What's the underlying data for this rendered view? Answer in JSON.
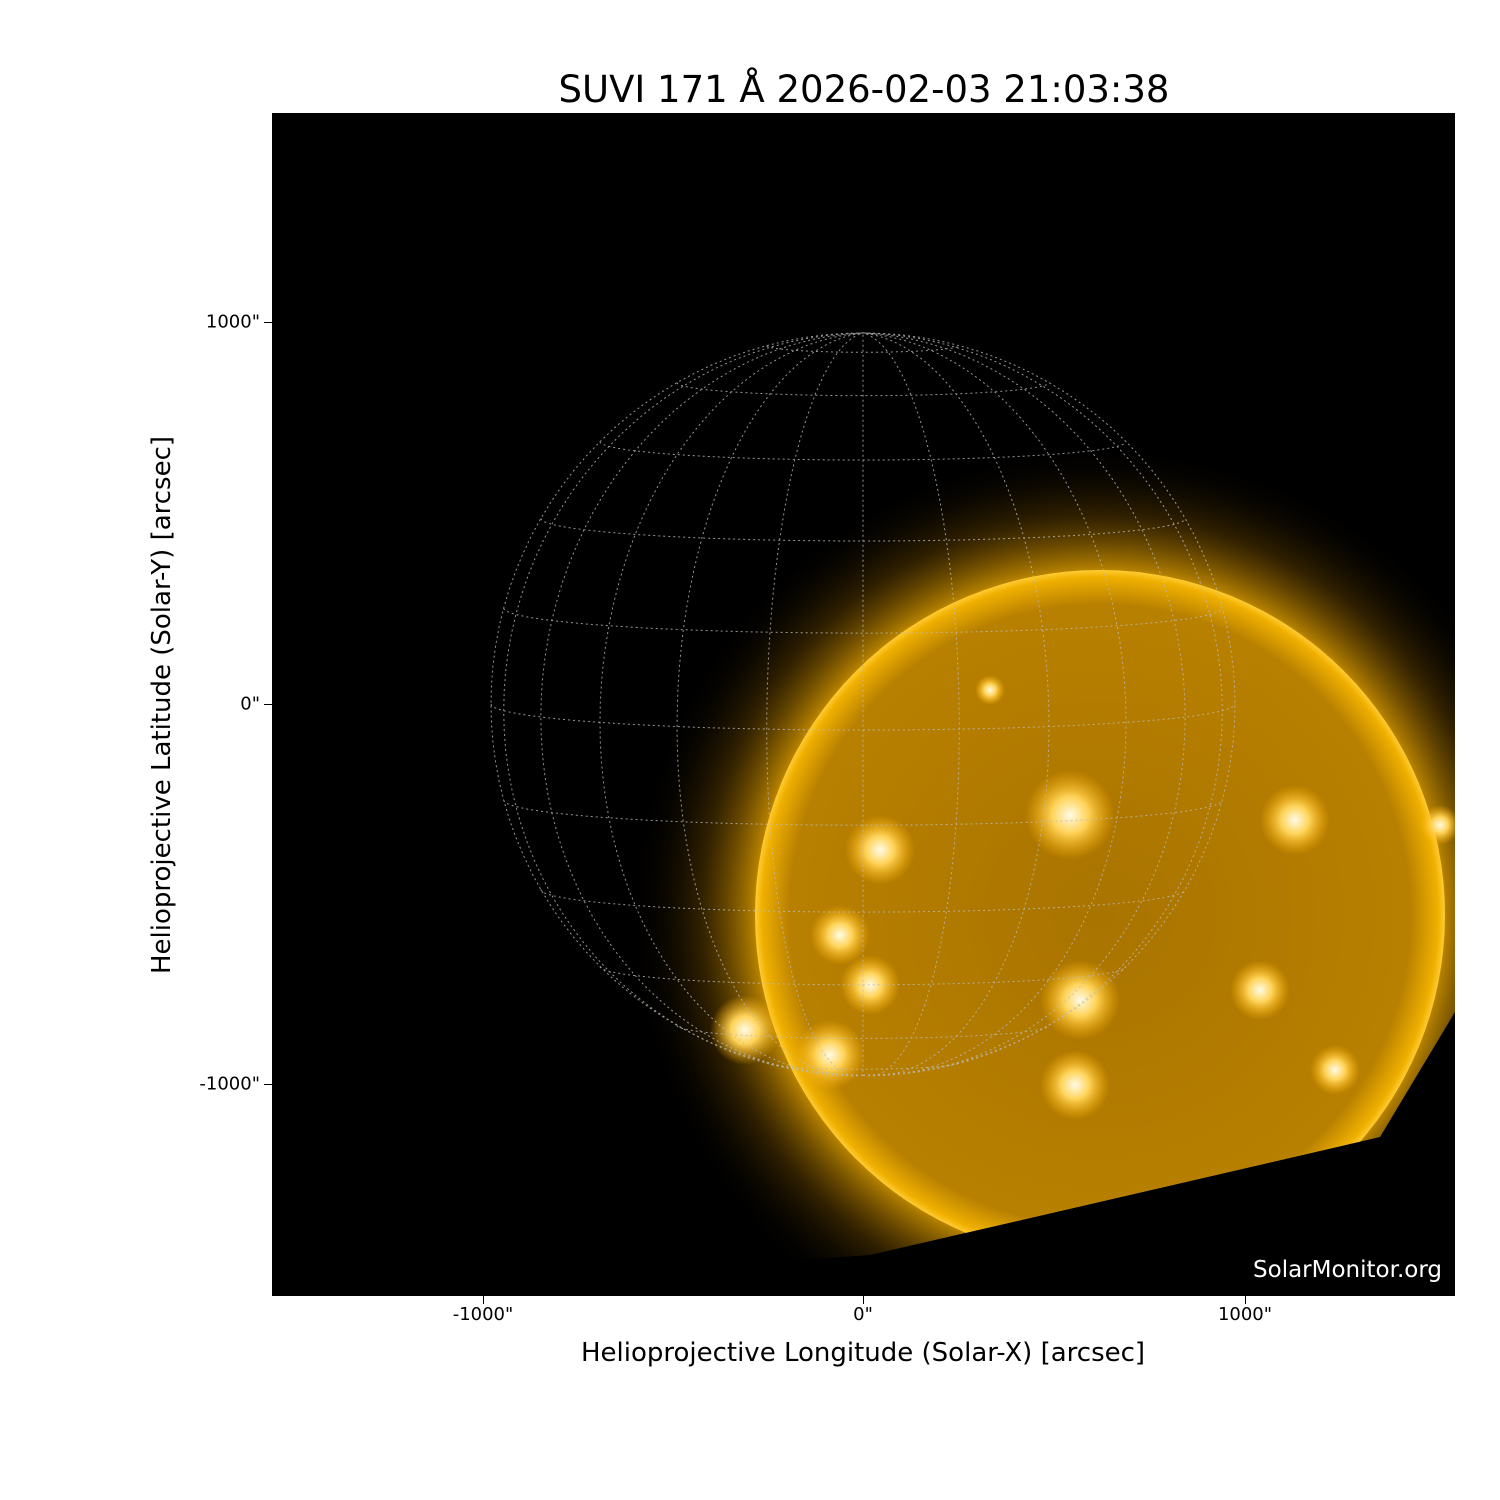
{
  "title": "SUVI 171 Å 2026-02-03 21:03:38",
  "xlabel": "Helioprojective Longitude (Solar-X) [arcsec]",
  "ylabel": "Helioprojective Latitude (Solar-Y) [arcsec]",
  "xticks": [
    "-1000\"",
    "0\"",
    "1000\""
  ],
  "yticks": [
    "1000\"",
    "0\"",
    "-1000\""
  ],
  "watermark": "SolarMonitor.org",
  "colors": {
    "sun": "#e8a300",
    "bright": "#fff3c0",
    "background": "#000000",
    "grid": "#bbbbbb"
  },
  "image": {
    "instrument": "SUVI",
    "wavelength": "171 Å",
    "grid": "heliographic lat/lon overlay, dotted"
  }
}
